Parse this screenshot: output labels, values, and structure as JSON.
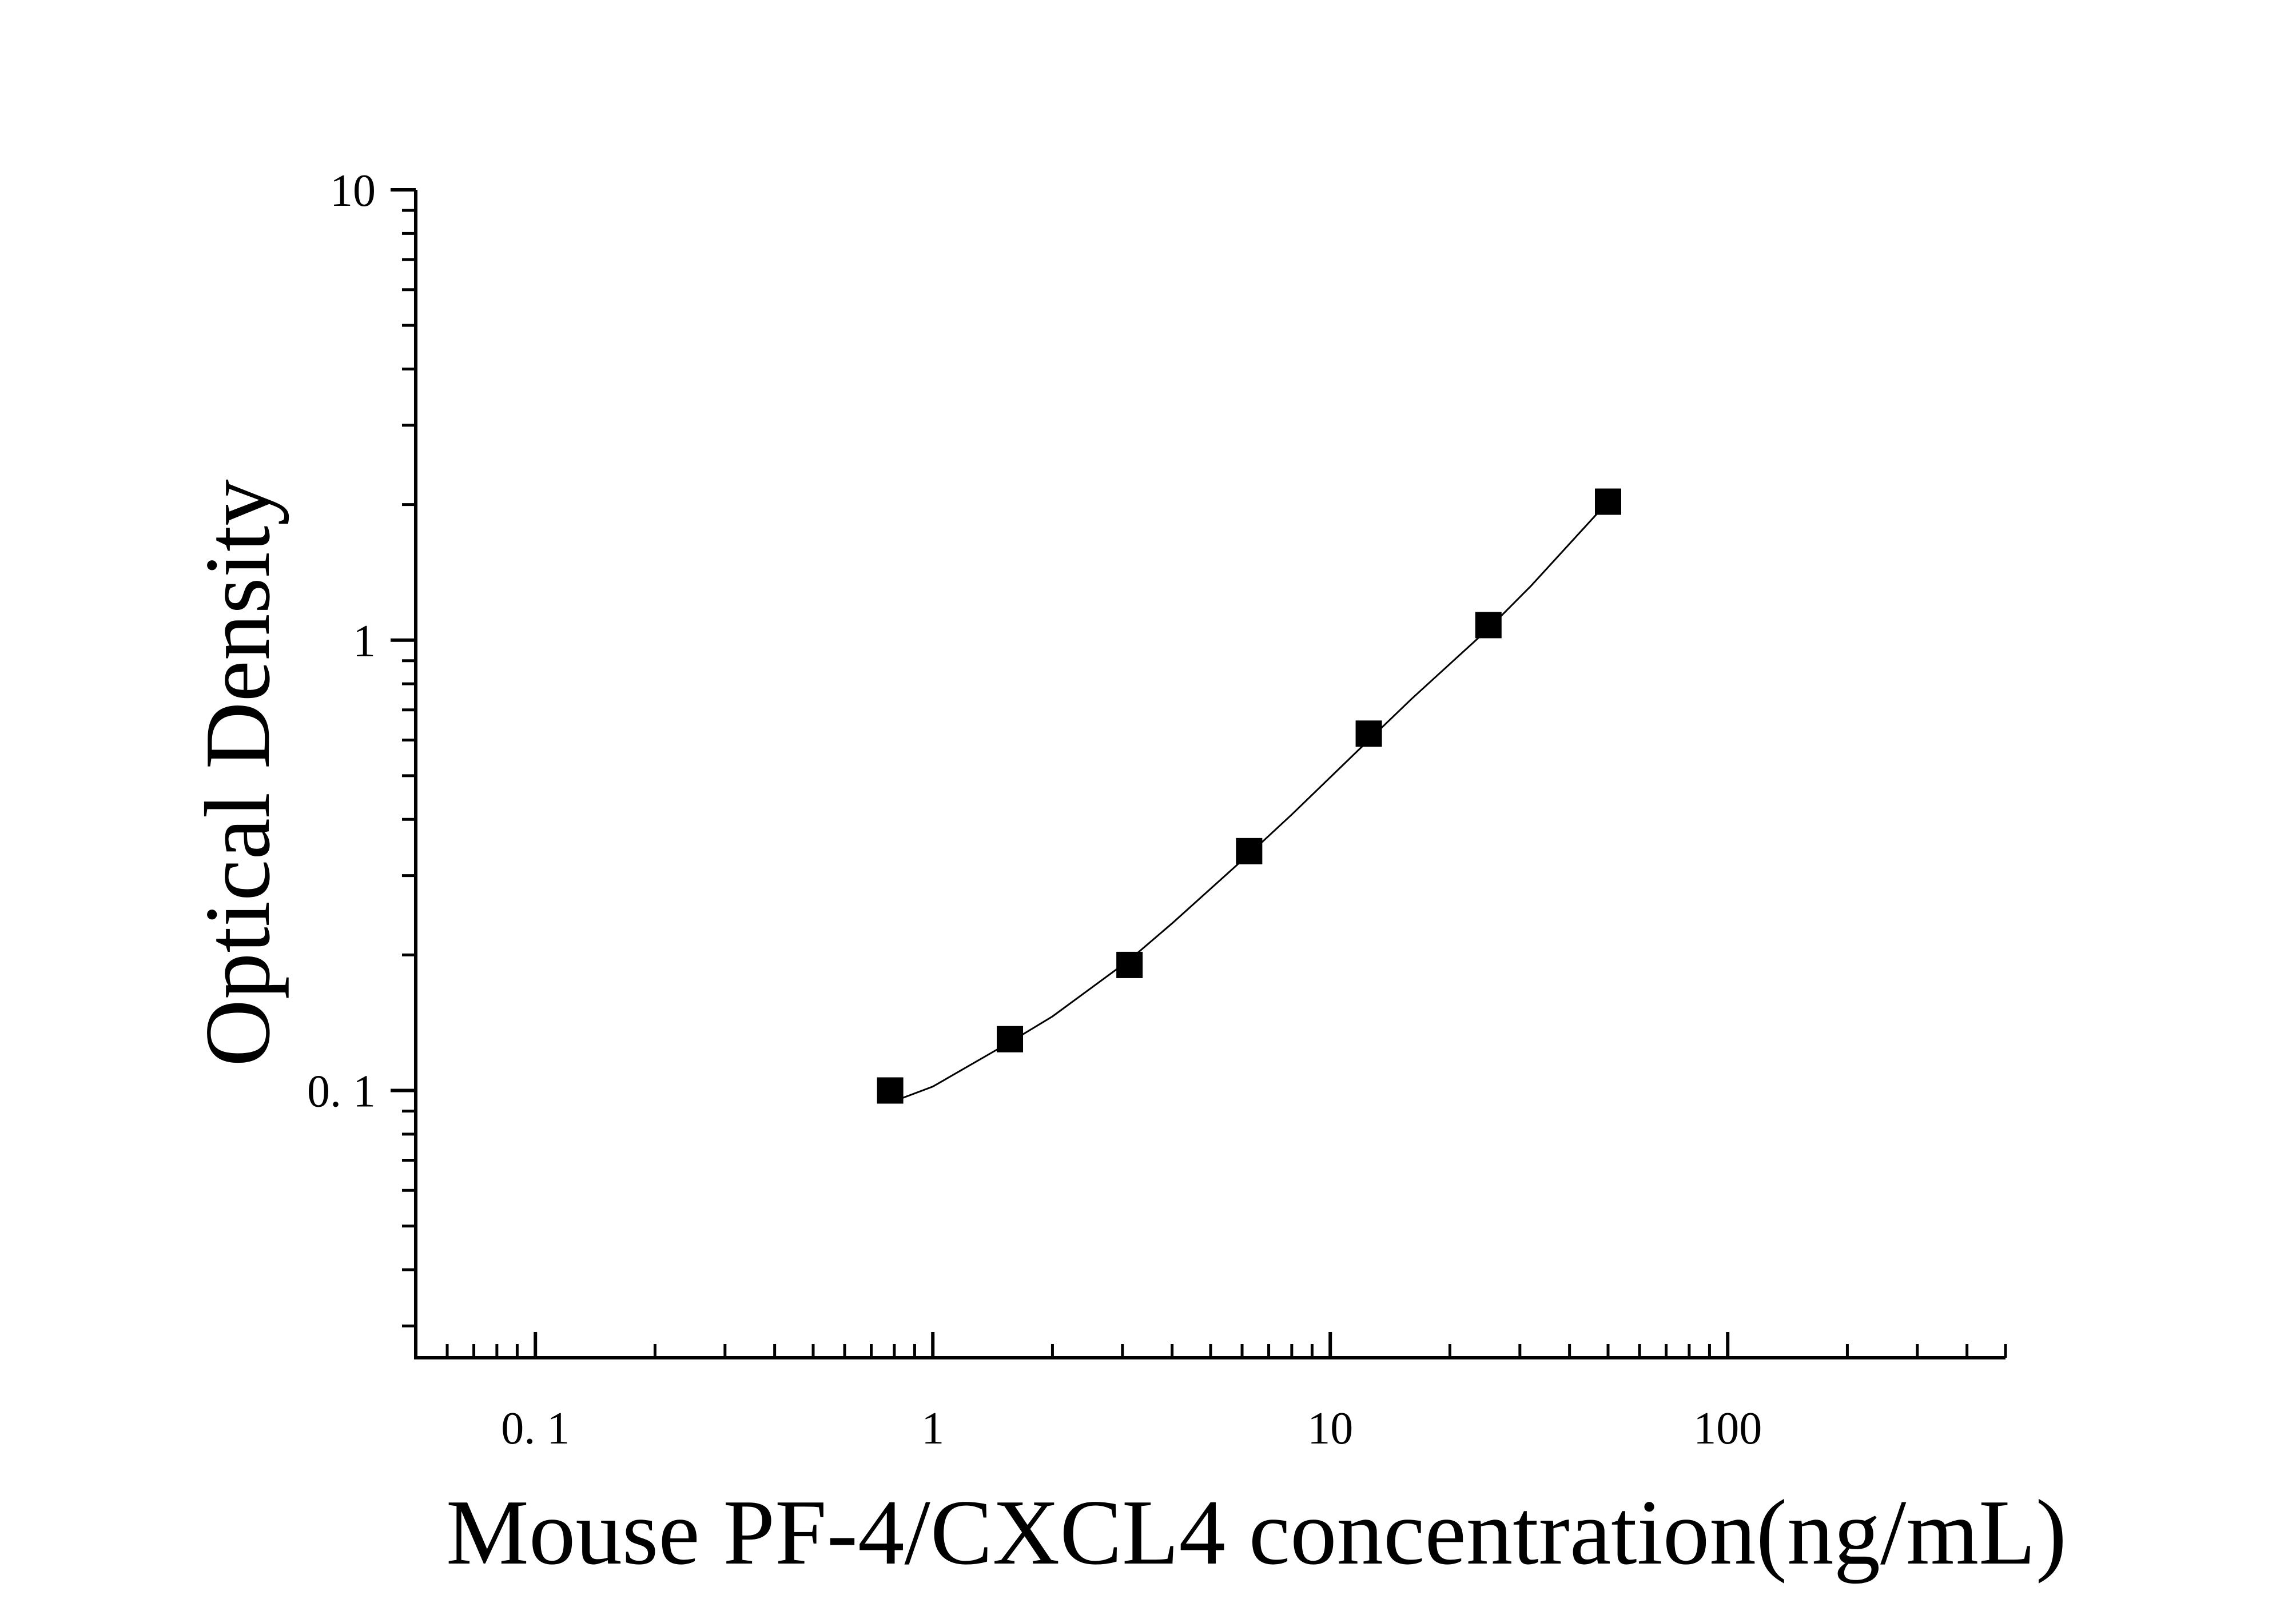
{
  "chart_data": {
    "type": "scatter",
    "xlabel": "Mouse PF-4/CXCL4 concentration(ng/mL)",
    "ylabel": "Optical Density",
    "x_scale": "log",
    "y_scale": "log",
    "xlim": [
      0.05,
      500
    ],
    "ylim": [
      0.0255,
      10
    ],
    "x_ticks": [
      {
        "value": 0.1,
        "label": "0. 1"
      },
      {
        "value": 1,
        "label": "1"
      },
      {
        "value": 10,
        "label": "10"
      },
      {
        "value": 100,
        "label": "100"
      }
    ],
    "y_ticks": [
      {
        "value": 0.1,
        "label": "0. 1"
      },
      {
        "value": 1,
        "label": "1"
      },
      {
        "value": 10,
        "label": "10"
      }
    ],
    "grid": false,
    "legend": "none",
    "series": [
      {
        "marker": "square",
        "x": [
          0.781,
          1.563,
          3.125,
          6.25,
          12.5,
          25,
          50
        ],
        "y": [
          0.1,
          0.13,
          0.19,
          0.34,
          0.62,
          1.08,
          2.03
        ]
      }
    ],
    "fit_curve": {
      "style": "thin-line",
      "x": [
        0.781,
        1.0,
        1.563,
        2.0,
        3.125,
        4.0,
        6.25,
        8.0,
        12.5,
        16.0,
        25,
        32,
        50
      ],
      "y": [
        0.094,
        0.102,
        0.128,
        0.146,
        0.195,
        0.235,
        0.335,
        0.41,
        0.6,
        0.74,
        1.06,
        1.32,
        2.03
      ]
    },
    "colors": {
      "axis": "#000000",
      "marker": "#000000",
      "curve": "#000000",
      "background": "#ffffff"
    }
  }
}
